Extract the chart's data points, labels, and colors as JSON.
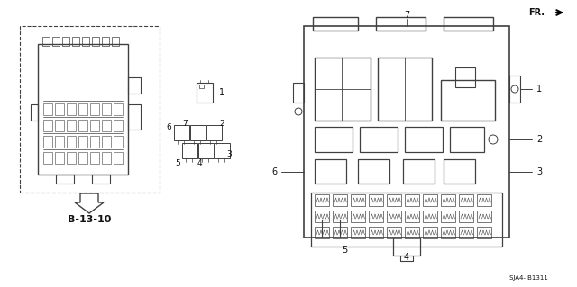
{
  "bg_color": "#ffffff",
  "line_color": "#404040",
  "text_color": "#111111",
  "fig_width": 6.4,
  "fig_height": 3.19,
  "footer_text": "SJA4- B1311",
  "ref_text": "B-13-10",
  "fr_text": "FR.",
  "labels": [
    "1",
    "2",
    "3",
    "4",
    "5",
    "6",
    "7"
  ]
}
